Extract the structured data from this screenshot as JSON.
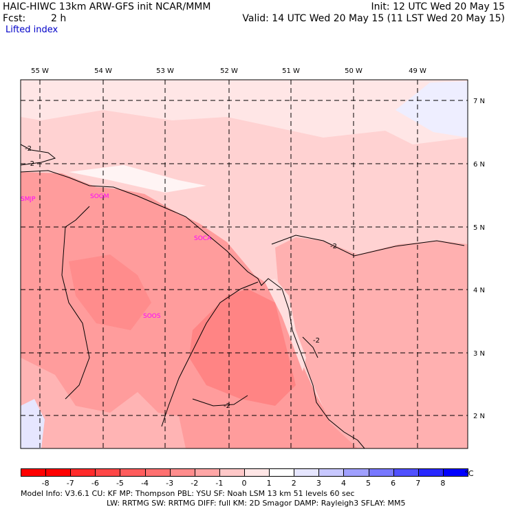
{
  "header": {
    "title_left": "HAIC-HIWC 13km ARW-GFS init   NCAR/MMM",
    "fcst_label": "Fcst:",
    "fcst_value": "2 h",
    "field": "Lifted index",
    "init": "Init: 12 UTC Wed 20 May 15",
    "valid": "Valid: 14 UTC Wed 20 May 15 (11 LST Wed 20 May 15)"
  },
  "axes": {
    "longitudes": [
      "55 W",
      "54 W",
      "53 W",
      "52 W",
      "51 W",
      "50 W",
      "49 W"
    ],
    "latitudes": [
      "7 N",
      "6 N",
      "5 N",
      "4 N",
      "3 N",
      "2 N"
    ]
  },
  "stations": [
    "SMJP",
    "SOGM",
    "SOCA",
    "SOOS"
  ],
  "contour_labels": [
    "-2",
    "-2",
    "-2",
    "-2",
    "-2"
  ],
  "colorbar": {
    "labels": [
      "-8",
      "-7",
      "-6",
      "-5",
      "-4",
      "-3",
      "-2",
      "-1",
      "0",
      "1",
      "2",
      "3",
      "4",
      "5",
      "6",
      "7",
      "8"
    ],
    "unit": "°C",
    "colors": [
      "#ff0000",
      "#ff2a2a",
      "#ff4747",
      "#ff5c5c",
      "#ff7070",
      "#ff8c8c",
      "#ffa6a6",
      "#ffc8c8",
      "#ffe6e6",
      "#ffffff",
      "#e6e6ff",
      "#c8c8ff",
      "#a0a0ff",
      "#7878ff",
      "#5050ff",
      "#2828ff",
      "#0000ff"
    ]
  },
  "footer": {
    "line1": "Model Info: V3.6.1     CU: KF         MP: Thompson      PBL: YSU        SF: Noah LSM      13 km    51 levels   60 sec",
    "line2": "LW: RRTMG     SW: RRTMG  DIFF: full     KM: 2D Smagor DAMP: Rayleigh3  SFLAY: MM5"
  }
}
